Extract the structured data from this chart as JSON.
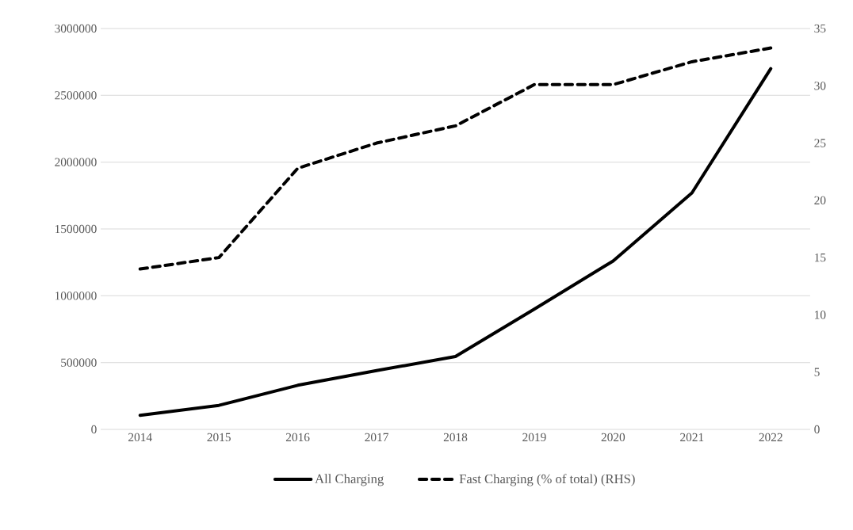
{
  "chart_data": {
    "type": "line",
    "categories": [
      "2014",
      "2015",
      "2016",
      "2017",
      "2018",
      "2019",
      "2020",
      "2021",
      "2022"
    ],
    "series": [
      {
        "name": "All Charging",
        "color": "#000000",
        "line_style": "solid",
        "values": [
          105000,
          180000,
          330000,
          440000,
          545000,
          900000,
          1260000,
          1770000,
          2700000
        ]
      },
      {
        "name": "Fast Charging (% of total) (RHS)",
        "color": "#000000",
        "line_style": "dashed",
        "axis": "y2",
        "values": [
          14.0,
          15.0,
          22.8,
          25.0,
          26.5,
          30.1,
          30.1,
          32.1,
          33.3
        ]
      }
    ],
    "ylim": [
      0,
      3000000
    ],
    "yticks": [
      0,
      500000,
      1000000,
      1500000,
      2000000,
      2500000,
      3000000
    ],
    "y2lim": [
      0,
      35
    ],
    "y2ticks": [
      0,
      5,
      10,
      15,
      20,
      25,
      30,
      35
    ],
    "grid": "y",
    "legend": "bottom"
  }
}
